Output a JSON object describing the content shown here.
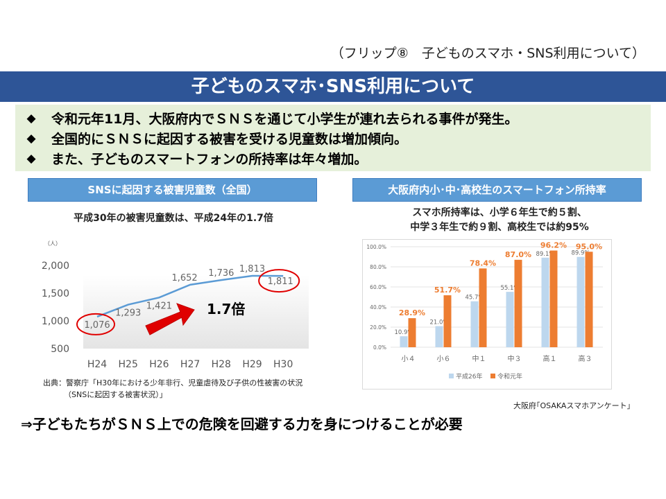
{
  "flip_label": "（フリップ⑧　子どものスマホ・SNS利用について）",
  "banner_title": "子どものスマホ･SNS利用について",
  "bullets": [
    "令和元年11月、大阪府内でＳＮＳを通じて小学生が連れ去られる事件が発生。",
    "全国的にＳＮＳに起因する被害を受ける児童数は増加傾向。",
    "また、子どものスマートフォンの所持率は年々増加。"
  ],
  "bullet_symbol": "◆",
  "left_panel": {
    "title": "SNSに起因する被害児童数（全国）",
    "subtitle": "平成30年の被害児童数は、平成24年の1.7倍",
    "ratio_label": "1.7倍",
    "source_lines": [
      "出典：警察庁「H30年における少年非行、児童虐待及び子供の性被害の状況",
      "（SNSに起因する被害状況）」"
    ]
  },
  "right_panel": {
    "title": "大阪府内小･中･高校生のスマートフォン所持率",
    "subtitle_lines": [
      "スマホ所持率は、小学６年生で約５割、",
      "中学３年生で約９割、高校生では約95%"
    ],
    "source": "大阪府｢OSAKAスマホアンケート｣"
  },
  "bottom_text": "⇒子どもたちがＳＮＳ上での危険を回避する力を身につけることが必要",
  "chart_data": [
    {
      "type": "line",
      "ylabel": "（人）",
      "x": [
        "H24",
        "H25",
        "H26",
        "H27",
        "H28",
        "H29",
        "H30"
      ],
      "values": [
        1076,
        1293,
        1421,
        1652,
        1736,
        1813,
        1811
      ],
      "data_labels": [
        "1,076",
        "1,293",
        "1,421",
        "1,652",
        "1,736",
        "1,813",
        "1,811"
      ],
      "yticks": [
        "2,000",
        "1,500",
        "1,000",
        "500"
      ],
      "ytick_values": [
        2000,
        1500,
        1000,
        500
      ],
      "ylim": [
        500,
        2000
      ],
      "highlighted": [
        "H24",
        "H30"
      ],
      "colors": {
        "line": "#5b9bd5",
        "highlight": "#e00000",
        "arrow": "#e00000"
      }
    },
    {
      "type": "bar",
      "categories": [
        "小４",
        "小６",
        "中１",
        "中３",
        "高１",
        "高３"
      ],
      "series": [
        {
          "name": "平成26年",
          "values": [
            10.9,
            21.0,
            45.7,
            55.1,
            89.1,
            89.9
          ],
          "color": "#bdd7ee",
          "labels": [
            "10.9%",
            "21.0%",
            "45.7%",
            "55.1%",
            "89.1%",
            "89.9%"
          ]
        },
        {
          "name": "令和元年",
          "values": [
            28.9,
            51.7,
            78.4,
            87.0,
            96.2,
            95.0
          ],
          "color": "#ed7d31",
          "labels": [
            "28.9%",
            "51.7%",
            "78.4%",
            "87.0%",
            "96.2%",
            "95.0%"
          ]
        }
      ],
      "yticks": [
        "100.0%",
        "80.0%",
        "60.0%",
        "40.0%",
        "20.0%",
        "0.0%"
      ],
      "ytick_values": [
        100,
        80,
        60,
        40,
        20,
        0
      ],
      "ylim": [
        0,
        100
      ],
      "gridlines": true,
      "legend": "bottom"
    }
  ]
}
